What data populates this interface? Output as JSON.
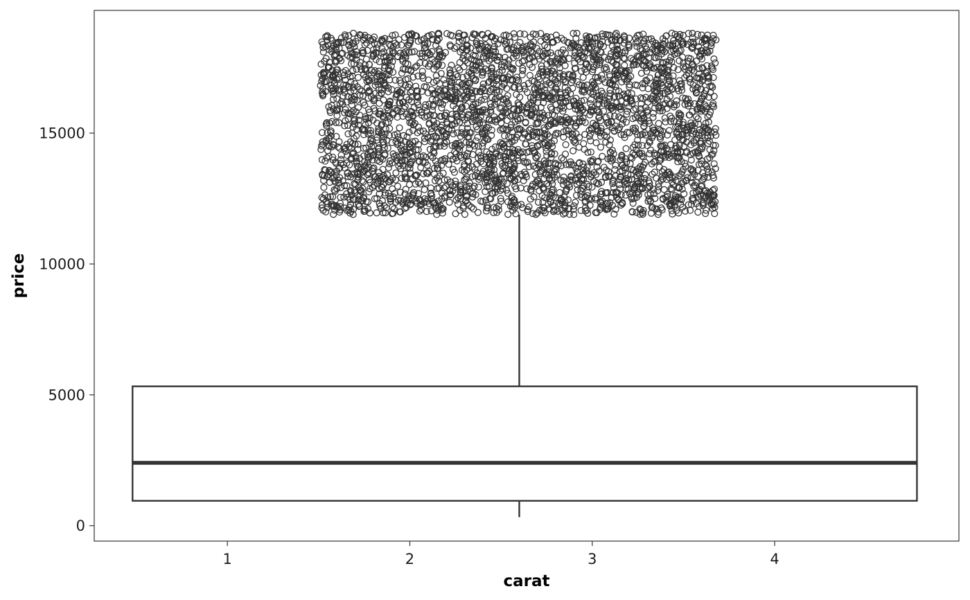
{
  "chart_data": {
    "type": "boxplot",
    "xlabel": "carat",
    "ylabel": "price",
    "x_ticks": [
      1,
      2,
      3,
      4
    ],
    "y_ticks": [
      0,
      5000,
      10000,
      15000
    ],
    "x_range": [
      0.27,
      5.01
    ],
    "y_range": [
      -590,
      19690
    ],
    "grid": false,
    "box": {
      "x_left": 0.48,
      "x_right": 4.78,
      "x_center": 2.6,
      "lower_whisker": 326,
      "q1": 950,
      "median": 2401,
      "q3": 5324,
      "upper_whisker": 11886
    },
    "outliers": {
      "x_range": [
        1.51,
        3.68
      ],
      "y_range": [
        11890,
        18823
      ],
      "approx_count": 3500,
      "marker": "open-circle"
    },
    "colors": {
      "ink": "#333333",
      "panel_border": "#333333",
      "background": "#ffffff"
    }
  }
}
